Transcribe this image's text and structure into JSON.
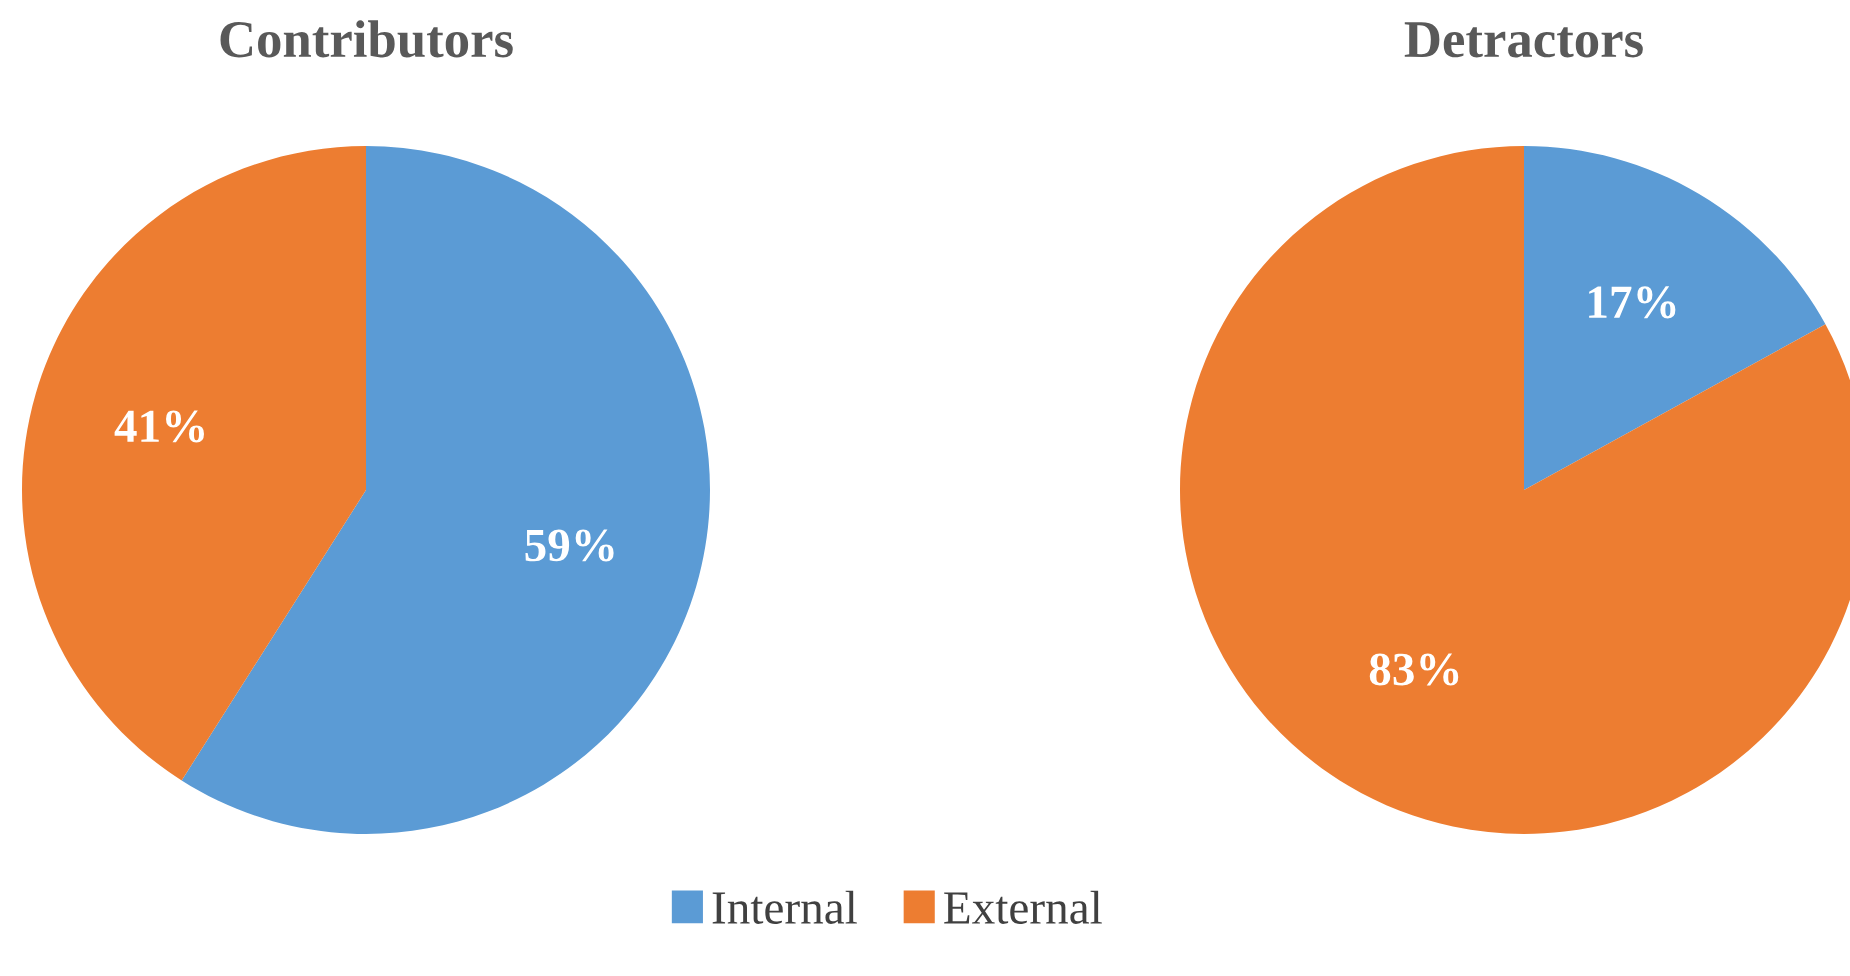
{
  "chart_data": [
    {
      "type": "pie",
      "title": "Contributors",
      "categories": [
        "Internal",
        "External"
      ],
      "values": [
        59,
        41
      ],
      "colors": [
        "#5b9bd5",
        "#ed7d31"
      ],
      "value_labels": [
        "59%",
        "41%"
      ],
      "legend": "bottom"
    },
    {
      "type": "pie",
      "title": "Detractors",
      "categories": [
        null,
        null
      ],
      "values": [
        17,
        83
      ],
      "colors": [
        "#5b9bd5",
        "#ed7d31"
      ],
      "value_labels": [
        "17%",
        "83%"
      ]
    }
  ]
}
